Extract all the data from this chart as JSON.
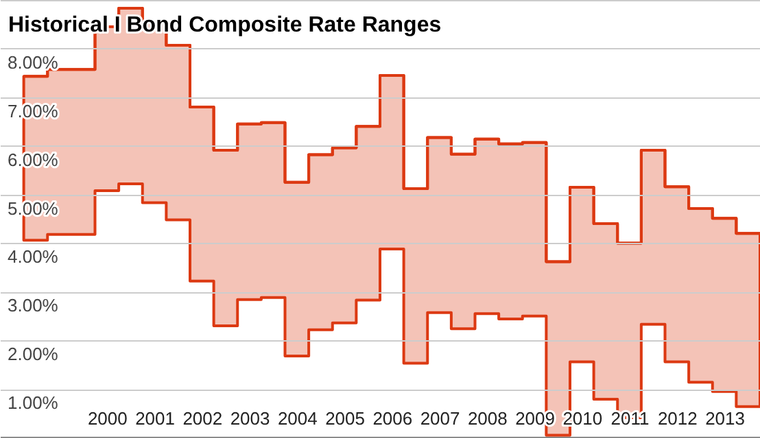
{
  "chart_data": {
    "type": "step",
    "title": "Historical I Bond Composite Rate Ranges",
    "x": [
      1998.25,
      1998.75,
      1999.25,
      1999.75,
      2000.25,
      2000.75,
      2001.25,
      2001.75,
      2002.25,
      2002.75,
      2003.25,
      2003.75,
      2004.25,
      2004.75,
      2005.25,
      2005.75,
      2006.25,
      2006.75,
      2007.25,
      2007.75,
      2008.25,
      2008.75,
      2009.25,
      2009.75,
      2010.25,
      2010.75,
      2011.25,
      2011.75,
      2012.25,
      2012.75,
      2013.25,
      2013.75
    ],
    "series": [
      {
        "color": "#dc3912",
        "values": [
          7.43,
          7.57,
          7.57,
          8.45,
          8.83,
          8.55,
          8.07,
          6.8,
          5.91,
          6.45,
          6.48,
          5.25,
          5.82,
          5.96,
          6.4,
          7.45,
          5.12,
          6.17,
          5.83,
          6.14,
          6.04,
          6.07,
          3.62,
          5.15,
          4.4,
          4.0,
          5.91,
          5.16,
          4.71,
          4.51,
          4.2,
          4.2
        ],
        "lower": [
          4.06,
          4.18,
          4.18,
          5.08,
          5.22,
          4.83,
          4.48,
          3.22,
          2.3,
          2.84,
          2.88,
          1.68,
          2.22,
          2.36,
          2.83,
          3.88,
          1.53,
          2.57,
          2.24,
          2.55,
          2.44,
          2.5,
          0.05,
          1.56,
          0.79,
          0.41,
          2.33,
          1.56,
          1.14,
          0.95,
          0.64,
          0.64
        ],
        "upper": [
          7.43,
          7.57,
          7.57,
          8.45,
          8.83,
          8.55,
          8.07,
          6.8,
          5.91,
          6.45,
          6.48,
          5.25,
          5.82,
          5.96,
          6.4,
          7.45,
          5.12,
          6.17,
          5.83,
          6.14,
          6.04,
          6.07,
          3.62,
          5.15,
          4.4,
          4.0,
          5.91,
          5.16,
          4.71,
          4.51,
          4.2,
          4.2
        ]
      }
    ],
    "xlim": [
      1997.75,
      2013.75
    ],
    "xticks": [
      2000,
      2001,
      2002,
      2003,
      2004,
      2005,
      2006,
      2007,
      2008,
      2009,
      2010,
      2011,
      2012,
      2013
    ],
    "ylim": [
      0,
      9
    ],
    "yticks": [
      {
        "value": 1,
        "label": "1.00%"
      },
      {
        "value": 2,
        "label": "2.00%"
      },
      {
        "value": 3,
        "label": "3.00%"
      },
      {
        "value": 4,
        "label": "4.00%"
      },
      {
        "value": 5,
        "label": "5.00%"
      },
      {
        "value": 6,
        "label": "6.00%"
      },
      {
        "value": 7,
        "label": "7.00%"
      },
      {
        "value": 8,
        "label": "8.00%"
      },
      {
        "value": 9,
        "label": null
      }
    ],
    "grid": "y"
  }
}
